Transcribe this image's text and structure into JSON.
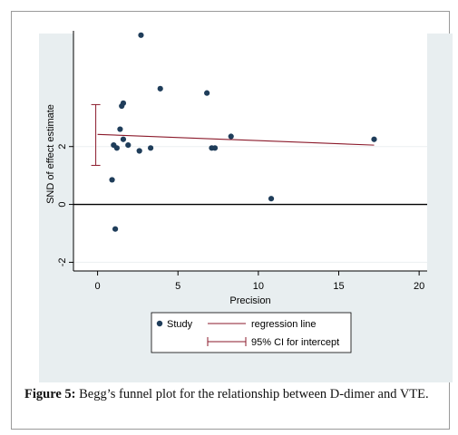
{
  "chart_data": {
    "type": "scatter",
    "title": "",
    "xlabel": "Precision",
    "ylabel": "SND of effect estimate",
    "xlim": [
      -1.5,
      20.5
    ],
    "ylim": [
      -2.3,
      6.0
    ],
    "x_ticks": [
      "0",
      "5",
      "10",
      "15",
      "20"
    ],
    "y_ticks": [
      "-2",
      "0",
      "2"
    ],
    "grid": true,
    "legend_position": "bottom",
    "series": [
      {
        "name": "Study",
        "points": [
          {
            "x": 2.7,
            "y": 5.85
          },
          {
            "x": 3.9,
            "y": 4.0
          },
          {
            "x": 6.8,
            "y": 3.85
          },
          {
            "x": 1.6,
            "y": 3.5
          },
          {
            "x": 1.5,
            "y": 3.4
          },
          {
            "x": 1.4,
            "y": 2.6
          },
          {
            "x": 8.3,
            "y": 2.35
          },
          {
            "x": 17.2,
            "y": 2.25
          },
          {
            "x": 1.6,
            "y": 2.25
          },
          {
            "x": 1.0,
            "y": 2.05
          },
          {
            "x": 1.9,
            "y": 2.05
          },
          {
            "x": 1.2,
            "y": 1.95
          },
          {
            "x": 3.3,
            "y": 1.95
          },
          {
            "x": 7.1,
            "y": 1.95
          },
          {
            "x": 7.3,
            "y": 1.95
          },
          {
            "x": 2.6,
            "y": 1.85
          },
          {
            "x": 0.9,
            "y": 0.85
          },
          {
            "x": 10.8,
            "y": 0.2
          },
          {
            "x": 1.1,
            "y": -0.85
          }
        ]
      }
    ],
    "regression_line": {
      "name": "regression line",
      "x": [
        0,
        17.2
      ],
      "y": [
        2.42,
        2.05
      ]
    },
    "ci_intercept": {
      "name": "95% CI for intercept",
      "lower": 1.35,
      "upper": 3.45
    },
    "colors": {
      "points": "#1f3d5a",
      "regression": "#8b1a2b",
      "ci": "#8b1a2b",
      "zero_line": "#000000",
      "panel_background": "#e8eef0",
      "grid": "#ffffff"
    }
  },
  "caption": {
    "label": "Figure 5:",
    "text": " Begg’s funnel plot for the relationship between D-dimer and VTE."
  }
}
